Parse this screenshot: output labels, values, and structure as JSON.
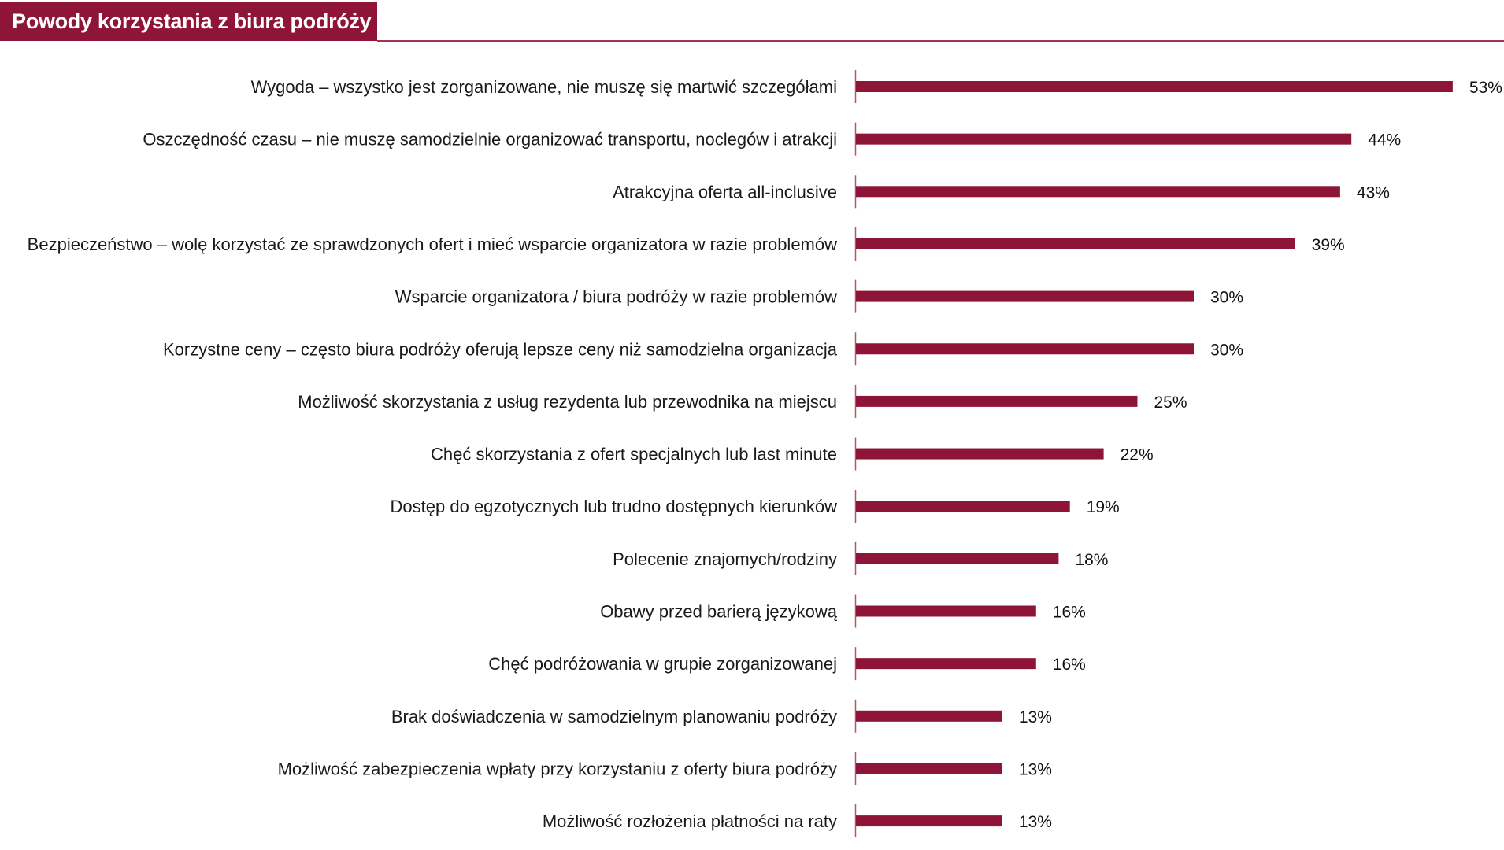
{
  "header": {
    "title": "Powody korzystania z biura podróży"
  },
  "colors": {
    "bar": "#8f1538",
    "title_background": "#8f1538",
    "axis": "#b5566f"
  },
  "chart_data": {
    "type": "bar",
    "orientation": "horizontal",
    "title": "Powody korzystania z biura podróży",
    "xlabel": "",
    "ylabel": "",
    "unit": "%",
    "xlim": [
      0,
      53
    ],
    "grid": false,
    "legend": "none",
    "categories": [
      "Wygoda – wszystko jest zorganizowane, nie muszę się martwić szczegółami",
      "Oszczędność czasu – nie muszę samodzielnie organizować transportu, noclegów i atrakcji",
      "Atrakcyjna oferta all-inclusive",
      "Bezpieczeństwo – wolę korzystać ze sprawdzonych ofert i mieć wsparcie organizatora w razie problemów",
      "Wsparcie organizatora / biura podróży w razie problemów",
      "Korzystne ceny – często biura podróży oferują lepsze ceny niż samodzielna organizacja",
      "Możliwość skorzystania z usług rezydenta lub przewodnika na miejscu",
      "Chęć skorzystania z ofert specjalnych lub last minute",
      "Dostęp do egzotycznych lub trudno dostępnych kierunków",
      "Polecenie znajomych/rodziny",
      "Obawy przed barierą językową",
      "Chęć podróżowania w grupie zorganizowanej",
      "Brak doświadczenia w samodzielnym planowaniu podróży",
      "Możliwość zabezpieczenia wpłaty przy korzystaniu z oferty biura podróży",
      "Możliwość rozłożenia płatności na raty"
    ],
    "values": [
      53,
      44,
      43,
      39,
      30,
      30,
      25,
      22,
      19,
      18,
      16,
      16,
      13,
      13,
      13
    ],
    "value_labels": [
      "53%",
      "44%",
      "43%",
      "39%",
      "30%",
      "30%",
      "25%",
      "22%",
      "19%",
      "18%",
      "16%",
      "16%",
      "13%",
      "13%",
      "13%"
    ]
  }
}
